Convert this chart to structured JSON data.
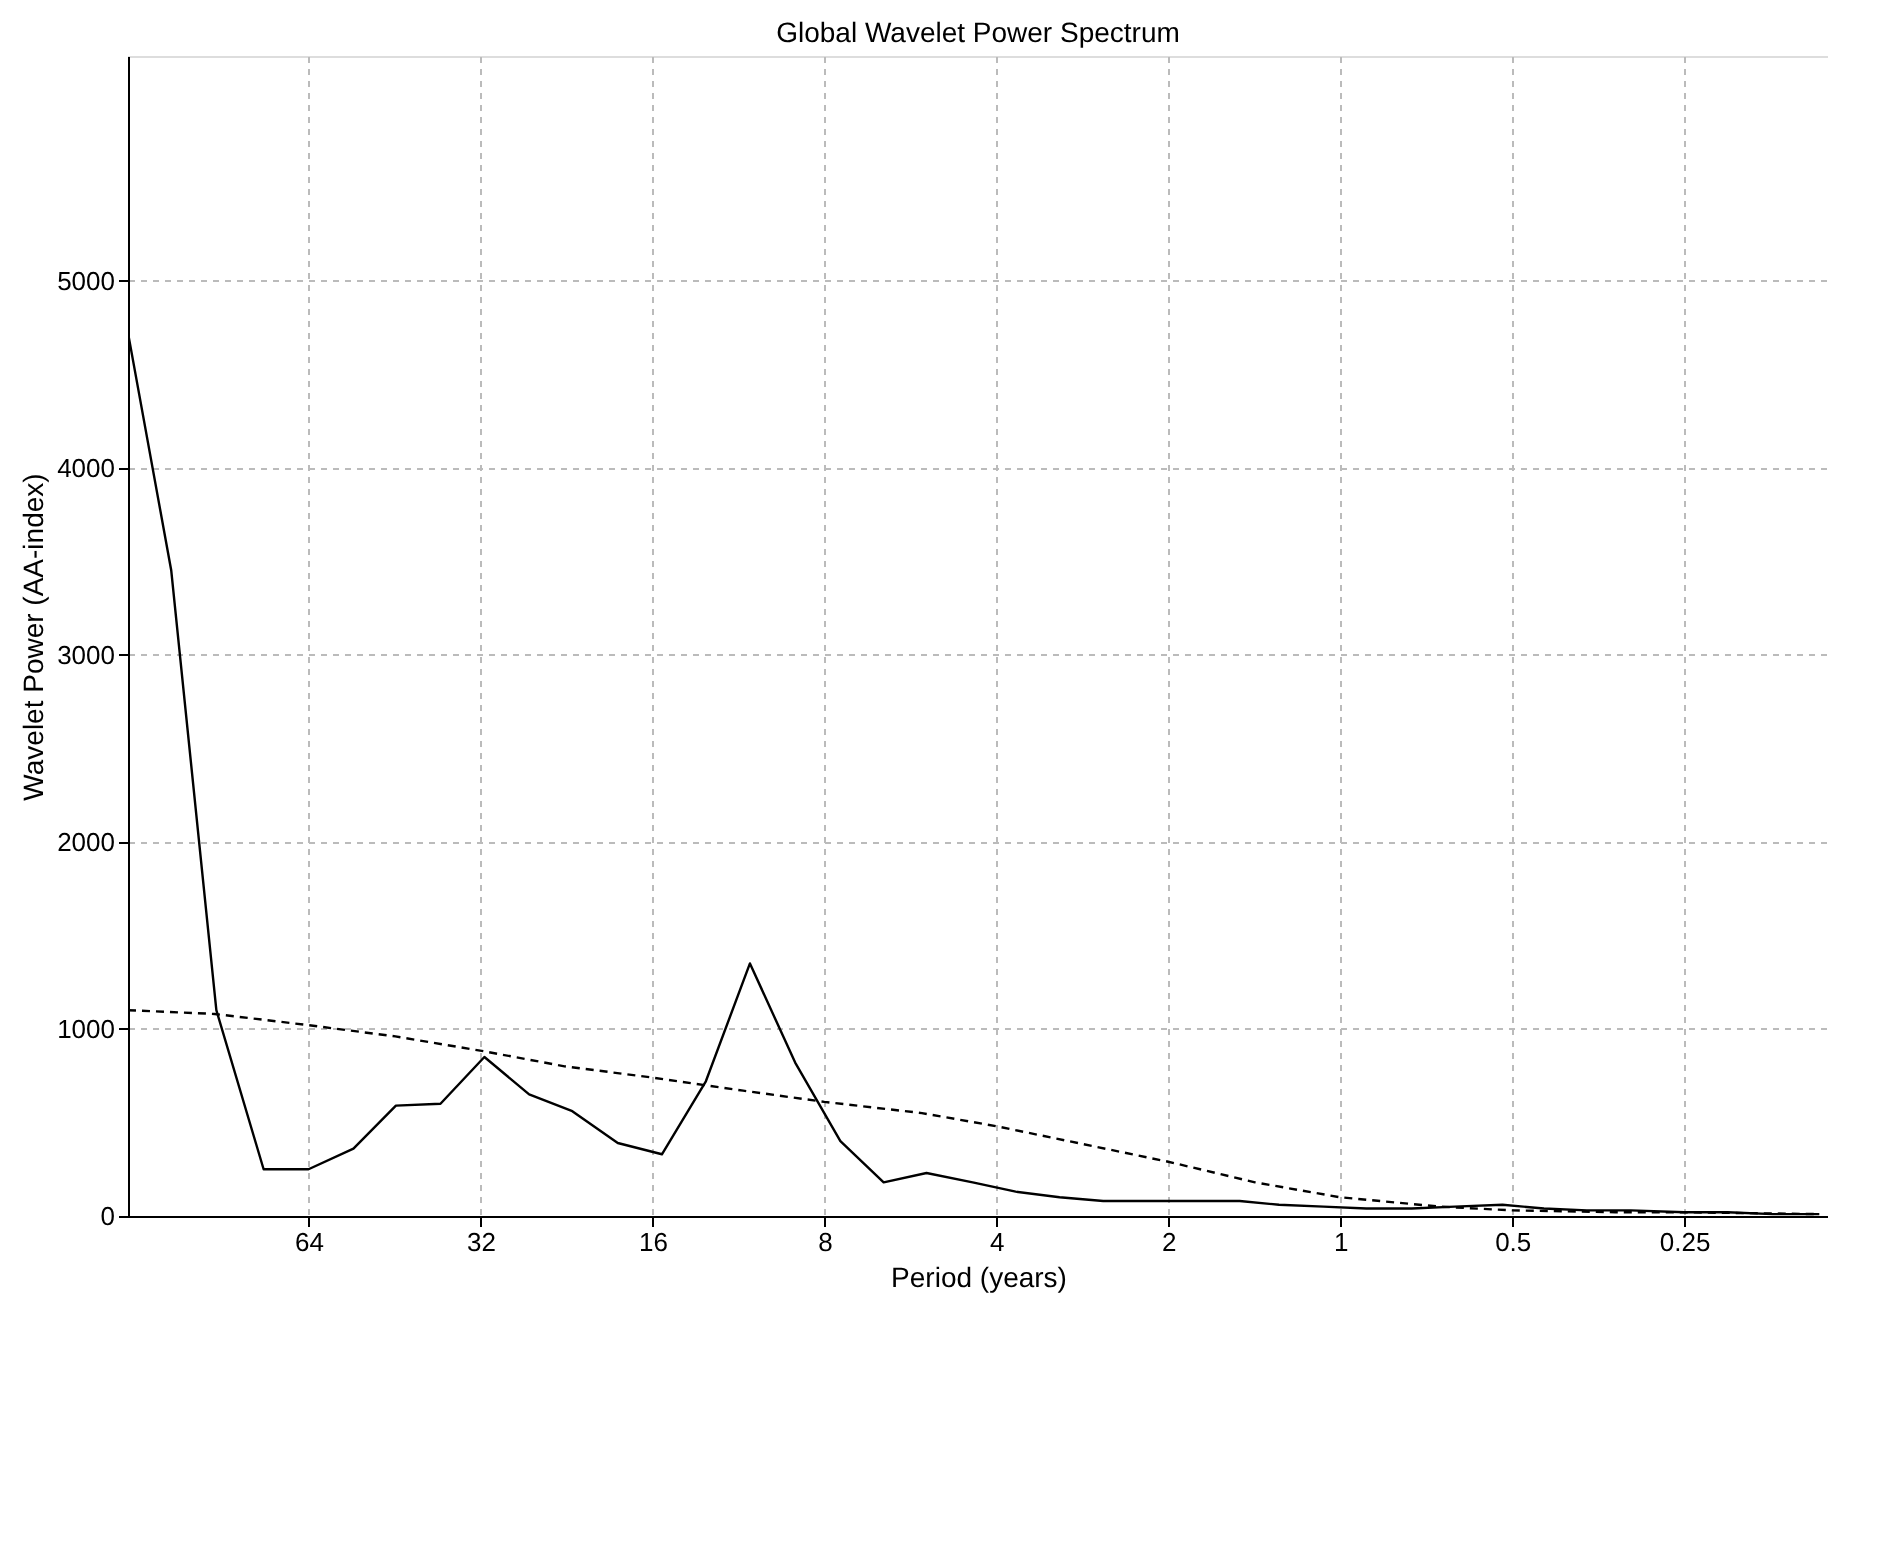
{
  "chart_data": {
    "type": "line",
    "title": "Global Wavelet Power Spectrum",
    "xlabel": "Period (years)",
    "ylabel": "Wavelet Power (AA-index)",
    "log": "x",
    "xlim": [
      132.5,
      0.14
    ],
    "xticks": [
      64,
      32,
      16,
      8,
      4,
      2,
      1,
      0.5,
      0.25
    ],
    "ylim": [
      0,
      6200
    ],
    "yticks": [
      0,
      1000,
      2000,
      3000,
      4000,
      5000
    ],
    "grid": true,
    "series": [
      {
        "color": "#000000",
        "line_style": "solid",
        "x": [
          132.5,
          111.3,
          92.8,
          76.7,
          64,
          53.4,
          45,
          37.6,
          31.5,
          26.3,
          22.1,
          18.4,
          15.4,
          12.9,
          10.8,
          9.0,
          7.5,
          6.3,
          5.3,
          4.4,
          3.7,
          3.1,
          2.6,
          2.2,
          1.8,
          1.5,
          1.28,
          1.07,
          0.9,
          0.75,
          0.63,
          0.52,
          0.44,
          0.37,
          0.31,
          0.25,
          0.21,
          0.175,
          0.145
        ],
        "values": [
          4720,
          3450,
          1100,
          250,
          250,
          360,
          590,
          600,
          850,
          650,
          560,
          390,
          330,
          720,
          1350,
          820,
          400,
          180,
          230,
          180,
          130,
          100,
          80,
          80,
          80,
          80,
          60,
          50,
          40,
          40,
          50,
          60,
          40,
          30,
          30,
          20,
          20,
          10,
          10
        ]
      },
      {
        "color": "#000000",
        "line_style": "dashed",
        "x": [
          132.5,
          93.5,
          64,
          45.1,
          31.5,
          22.8,
          16,
          11.1,
          8,
          5.4,
          4,
          2.88,
          2,
          1.41,
          1,
          0.67,
          0.5,
          0.33,
          0.25,
          0.145
        ],
        "values": [
          1100,
          1080,
          1020,
          960,
          880,
          800,
          740,
          670,
          610,
          550,
          480,
          390,
          290,
          180,
          100,
          50,
          30,
          20,
          20,
          10
        ]
      }
    ]
  }
}
